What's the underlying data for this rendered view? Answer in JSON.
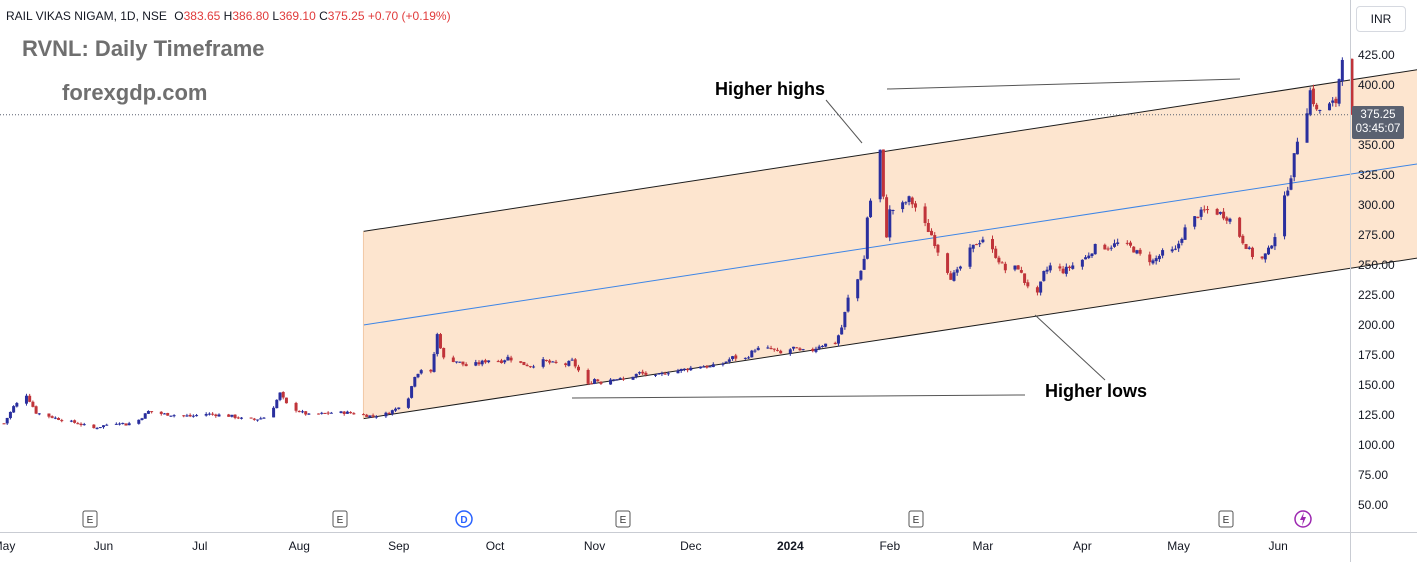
{
  "header": {
    "symbol": "RAIL VIKAS NIGAM, 1D, NSE",
    "o_label": "O",
    "o_value": "383.65",
    "h_label": "H",
    "h_value": "386.80",
    "l_label": "L",
    "l_value": "369.10",
    "c_label": "C",
    "c_value": "375.25",
    "change": "+0.70 (+0.19%)"
  },
  "overlay_title": "RVNL: Daily Timeframe",
  "watermark": "forexgdp.com",
  "currency": "INR",
  "last_price": "375.25",
  "countdown": "03:45:07",
  "annotations": {
    "higher_highs": "Higher highs",
    "higher_lows": "Higher lows"
  },
  "colors": {
    "up": "#2a2f9e",
    "down": "#c0343a",
    "channel_fill": "#fde5cf",
    "midline": "#3d85e6"
  },
  "chart_data": {
    "type": "candlestick",
    "title": "RVNL: Daily Timeframe",
    "ylim": [
      25,
      440
    ],
    "y_ticks": [
      "425.00",
      "400.00",
      "375.00",
      "350.00",
      "325.00",
      "300.00",
      "275.00",
      "250.00",
      "225.00",
      "200.00",
      "175.00",
      "150.00",
      "125.00",
      "100.00",
      "75.00",
      "50.00"
    ],
    "x_ticks": [
      "May",
      "Jun",
      "Jul",
      "Aug",
      "Sep",
      "Oct",
      "Nov",
      "Dec",
      "2024",
      "Feb",
      "Mar",
      "Apr",
      "May",
      "Jun"
    ],
    "events": [
      {
        "month": "Jun",
        "type": "E"
      },
      {
        "month": "Aug",
        "type": "E"
      },
      {
        "month": "Sep",
        "type": "D"
      },
      {
        "month": "Nov",
        "type": "E"
      },
      {
        "month": "Feb",
        "type": "E"
      },
      {
        "month": "May",
        "type": "E"
      },
      {
        "month": "Jun",
        "type": "flash"
      }
    ],
    "anchors": [
      [
        "2023-05-01",
        118
      ],
      [
        "2023-05-04",
        132
      ],
      [
        "2023-05-08",
        142
      ],
      [
        "2023-05-11",
        127
      ],
      [
        "2023-05-15",
        124
      ],
      [
        "2023-05-19",
        121
      ],
      [
        "2023-05-24",
        118
      ],
      [
        "2023-05-29",
        114
      ],
      [
        "2023-06-02",
        117
      ],
      [
        "2023-06-06",
        119
      ],
      [
        "2023-06-08",
        117
      ],
      [
        "2023-06-12",
        121
      ],
      [
        "2023-06-15",
        128
      ],
      [
        "2023-06-19",
        126
      ],
      [
        "2023-06-23",
        125
      ],
      [
        "2023-06-28",
        124
      ],
      [
        "2023-07-03",
        126
      ],
      [
        "2023-07-07",
        125
      ],
      [
        "2023-07-11",
        124
      ],
      [
        "2023-07-14",
        122
      ],
      [
        "2023-07-18",
        121
      ],
      [
        "2023-07-21",
        123
      ],
      [
        "2023-07-24",
        132
      ],
      [
        "2023-07-26",
        143
      ],
      [
        "2023-07-28",
        134
      ],
      [
        "2023-08-01",
        128
      ],
      [
        "2023-08-04",
        125
      ],
      [
        "2023-08-08",
        126
      ],
      [
        "2023-08-11",
        127
      ],
      [
        "2023-08-16",
        127
      ],
      [
        "2023-08-21",
        125
      ],
      [
        "2023-08-24",
        124
      ],
      [
        "2023-08-28",
        126
      ],
      [
        "2023-08-31",
        130
      ],
      [
        "2023-09-04",
        140
      ],
      [
        "2023-09-06",
        158
      ],
      [
        "2023-09-08",
        163
      ],
      [
        "2023-09-11",
        160
      ],
      [
        "2023-09-13",
        192
      ],
      [
        "2023-09-15",
        172
      ],
      [
        "2023-09-19",
        170
      ],
      [
        "2023-09-22",
        166
      ],
      [
        "2023-09-26",
        168
      ],
      [
        "2023-09-29",
        171
      ],
      [
        "2023-10-03",
        170
      ],
      [
        "2023-10-05",
        173
      ],
      [
        "2023-10-09",
        168
      ],
      [
        "2023-10-12",
        166
      ],
      [
        "2023-10-16",
        170
      ],
      [
        "2023-10-19",
        168
      ],
      [
        "2023-10-23",
        167
      ],
      [
        "2023-10-25",
        170
      ],
      [
        "2023-10-27",
        162
      ],
      [
        "2023-10-30",
        150
      ],
      [
        "2023-11-01",
        155
      ],
      [
        "2023-11-03",
        152
      ],
      [
        "2023-11-07",
        156
      ],
      [
        "2023-11-10",
        154
      ],
      [
        "2023-11-15",
        160
      ],
      [
        "2023-11-20",
        157
      ],
      [
        "2023-11-24",
        161
      ],
      [
        "2023-11-29",
        163
      ],
      [
        "2023-12-04",
        166
      ],
      [
        "2023-12-07",
        165
      ],
      [
        "2023-12-11",
        168
      ],
      [
        "2023-12-14",
        173
      ],
      [
        "2023-12-18",
        172
      ],
      [
        "2023-12-21",
        180
      ],
      [
        "2023-12-26",
        180
      ],
      [
        "2023-12-29",
        176
      ],
      [
        "2024-01-02",
        181
      ],
      [
        "2024-01-04",
        178
      ],
      [
        "2024-01-08",
        179
      ],
      [
        "2024-01-10",
        183
      ],
      [
        "2024-01-12",
        184
      ],
      [
        "2024-01-15",
        185
      ],
      [
        "2024-01-17",
        198
      ],
      [
        "2024-01-19",
        222
      ],
      [
        "2024-01-22",
        238
      ],
      [
        "2024-01-24",
        255
      ],
      [
        "2024-01-25",
        290
      ],
      [
        "2024-01-29",
        345
      ],
      [
        "2024-01-30",
        305
      ],
      [
        "2024-01-31",
        275
      ],
      [
        "2024-02-01",
        295
      ],
      [
        "2024-02-05",
        300
      ],
      [
        "2024-02-07",
        305
      ],
      [
        "2024-02-09",
        298
      ],
      [
        "2024-02-12",
        283
      ],
      [
        "2024-02-14",
        275
      ],
      [
        "2024-02-16",
        262
      ],
      [
        "2024-02-20",
        240
      ],
      [
        "2024-02-22",
        244
      ],
      [
        "2024-02-26",
        262
      ],
      [
        "2024-02-28",
        268
      ],
      [
        "2024-03-01",
        272
      ],
      [
        "2024-03-05",
        258
      ],
      [
        "2024-03-08",
        246
      ],
      [
        "2024-03-12",
        248
      ],
      [
        "2024-03-14",
        236
      ],
      [
        "2024-03-18",
        225
      ],
      [
        "2024-03-20",
        243
      ],
      [
        "2024-03-22",
        249
      ],
      [
        "2024-03-26",
        245
      ],
      [
        "2024-03-28",
        248
      ],
      [
        "2024-04-02",
        256
      ],
      [
        "2024-04-05",
        265
      ],
      [
        "2024-04-09",
        265
      ],
      [
        "2024-04-12",
        268
      ],
      [
        "2024-04-16",
        265
      ],
      [
        "2024-04-19",
        258
      ],
      [
        "2024-04-23",
        253
      ],
      [
        "2024-04-26",
        260
      ],
      [
        "2024-04-30",
        262
      ],
      [
        "2024-05-03",
        280
      ],
      [
        "2024-05-07",
        292
      ],
      [
        "2024-05-10",
        296
      ],
      [
        "2024-05-14",
        293
      ],
      [
        "2024-05-17",
        288
      ],
      [
        "2024-05-21",
        270
      ],
      [
        "2024-05-24",
        258
      ],
      [
        "2024-05-27",
        255
      ],
      [
        "2024-05-29",
        262
      ],
      [
        "2024-05-31",
        275
      ],
      [
        "2024-06-03",
        305
      ],
      [
        "2024-06-05",
        325
      ],
      [
        "2024-06-07",
        355
      ],
      [
        "2024-06-10",
        380
      ],
      [
        "2024-06-11",
        395
      ],
      [
        "2024-06-13",
        378
      ],
      [
        "2024-06-17",
        383
      ],
      [
        "2024-06-19",
        386
      ],
      [
        "2024-06-21",
        425
      ],
      [
        "2024-06-25",
        355
      ],
      [
        "2024-06-27",
        360
      ],
      [
        "2024-07-01",
        380
      ],
      [
        "2024-07-03",
        375.25
      ]
    ],
    "channel": {
      "start_date": "2023-08-21",
      "end_date": "2024-07-15",
      "upper": [
        278,
        413
      ],
      "lower": [
        122,
        256
      ],
      "mid": [
        200,
        334.5
      ]
    }
  }
}
